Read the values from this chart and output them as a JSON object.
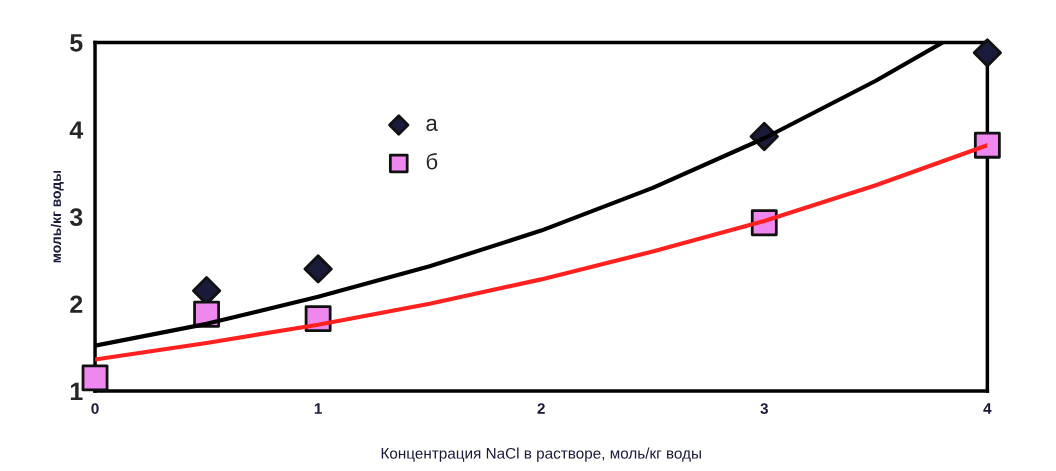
{
  "chart_data": {
    "type": "scatter",
    "xlabel": "Концентрация NaCl в растворе, моль/кг воды",
    "ylabel": "моль/кг воды",
    "xlim": [
      0,
      4
    ],
    "ylim": [
      1,
      5
    ],
    "xticks": [
      0,
      1,
      2,
      3,
      4
    ],
    "yticks": [
      1,
      2,
      3,
      4,
      5
    ],
    "grid": false,
    "legend": "top",
    "series": [
      {
        "name": "а",
        "marker": "diamond",
        "color": "#1a1a3a",
        "x": [
          0.5,
          1,
          3,
          4
        ],
        "values": [
          2.15,
          2.4,
          3.92,
          4.88
        ]
      },
      {
        "name": "б",
        "marker": "square",
        "color": "#ee88ee",
        "x": [
          0,
          0.5,
          1,
          3,
          4
        ],
        "values": [
          1.15,
          1.88,
          1.83,
          2.93,
          3.82
        ]
      },
      {
        "type": "line",
        "marker": "none",
        "color": "#000000",
        "x": [
          0,
          0.5,
          1,
          1.5,
          2,
          2.5,
          3,
          3.5,
          3.8
        ],
        "values": [
          1.52,
          1.77,
          2.08,
          2.43,
          2.84,
          3.33,
          3.9,
          4.56,
          5.0
        ]
      },
      {
        "type": "line",
        "marker": "none",
        "color": "#ff2020",
        "x": [
          0,
          0.5,
          1,
          1.5,
          2,
          2.5,
          3,
          3.5,
          4
        ],
        "values": [
          1.36,
          1.55,
          1.76,
          2.0,
          2.28,
          2.6,
          2.95,
          3.36,
          3.82
        ]
      }
    ]
  }
}
